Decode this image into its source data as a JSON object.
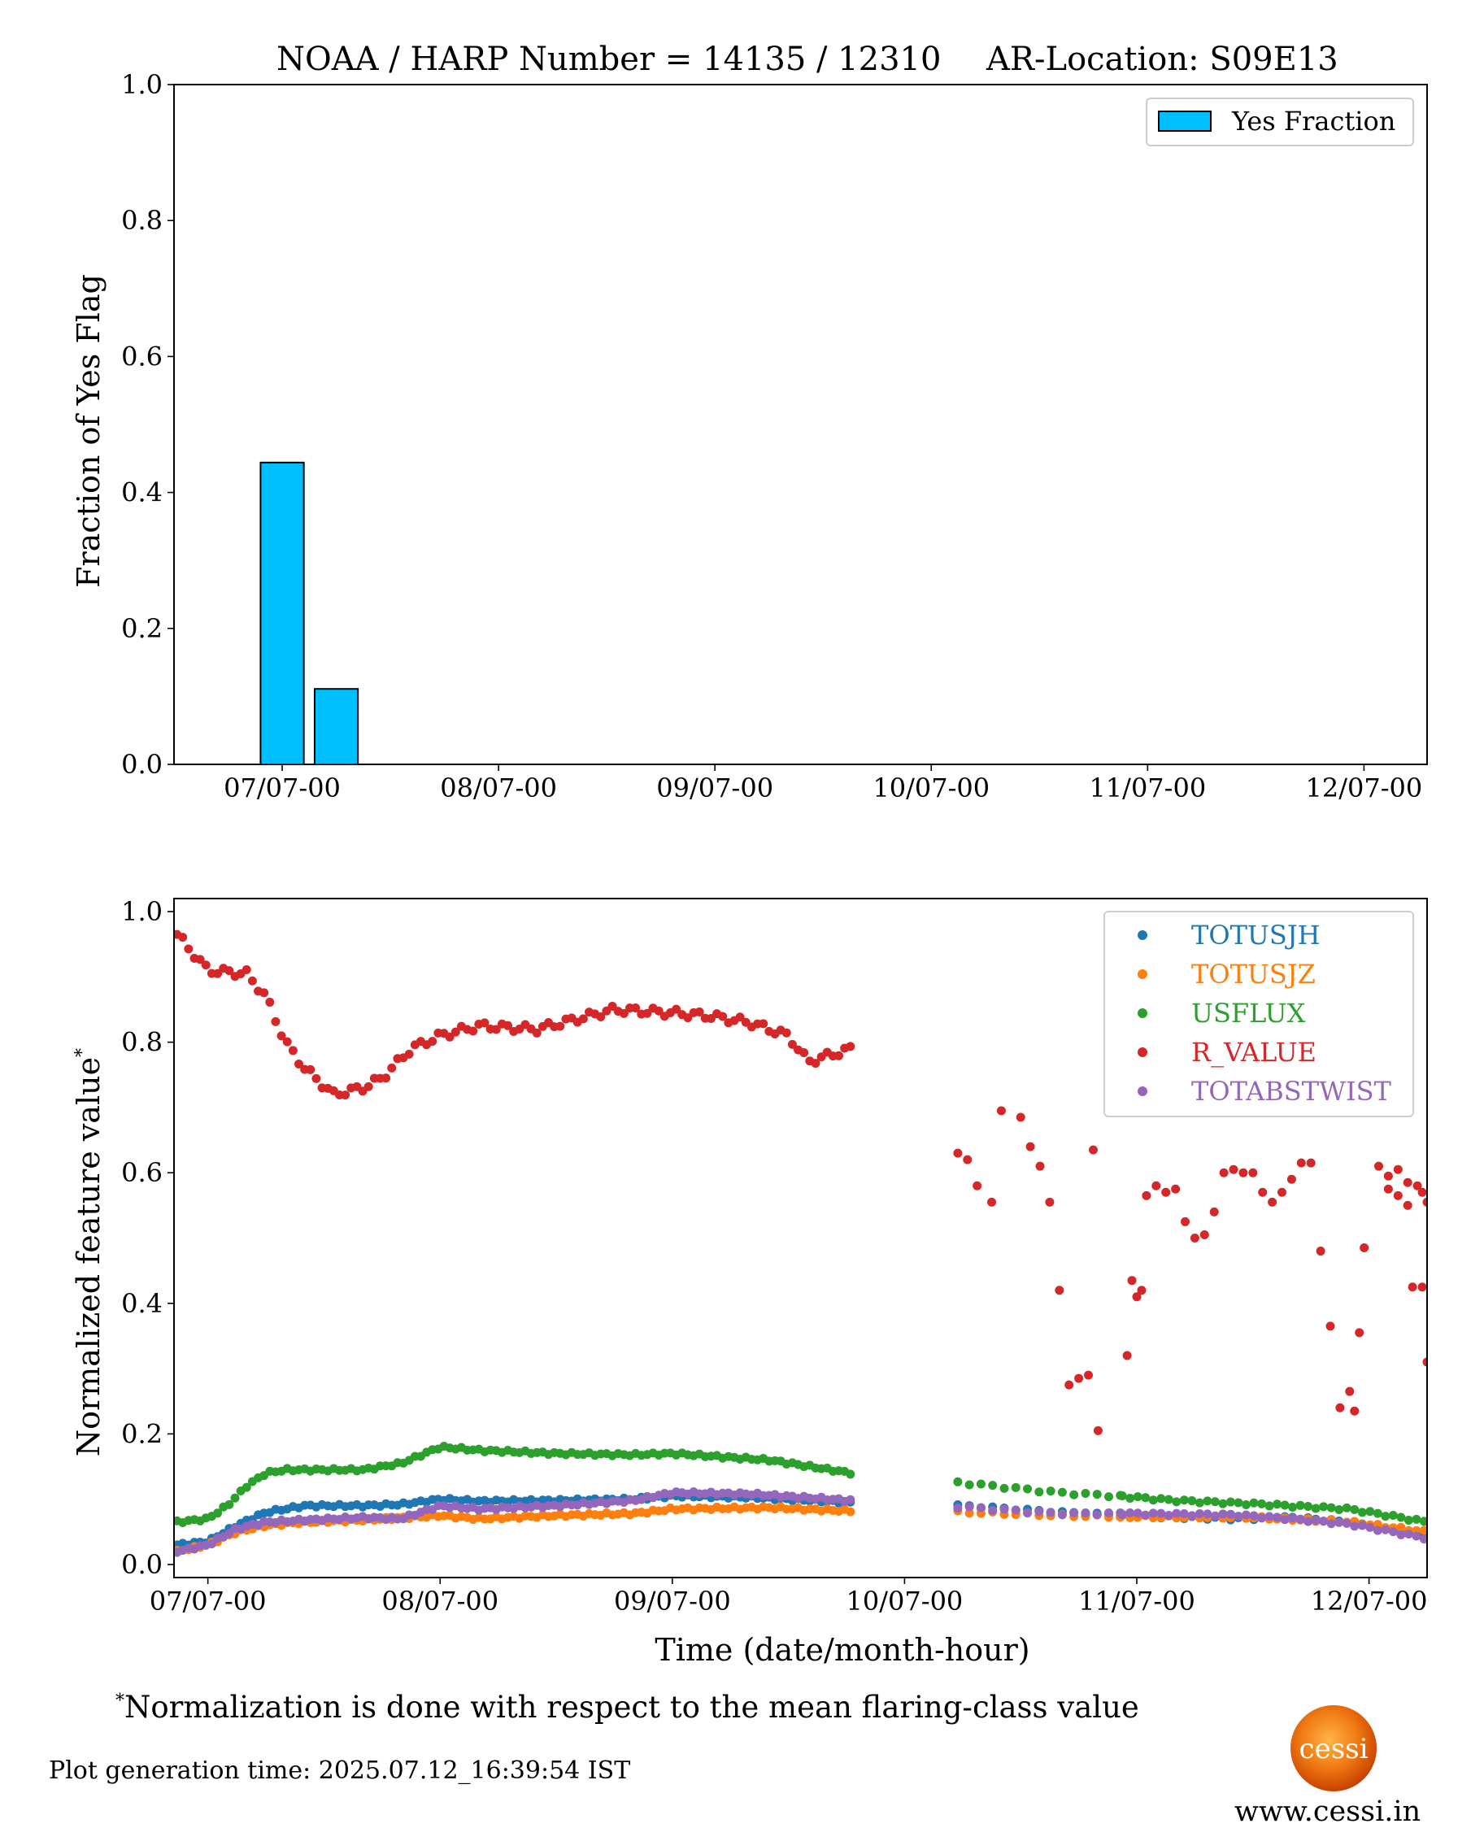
{
  "figure": {
    "title_left": "NOAA / HARP Number = 14135 / 12310",
    "title_right": "AR-Location: S09E13",
    "footnote_mark": "*",
    "footnote": "Normalization is done with respect to the mean flaring-class value",
    "generation_time": "Plot generation time: 2025.07.12_16:39:54 IST",
    "logo_text": "cessi",
    "website": "www.cessi.in"
  },
  "chart_data": [
    {
      "type": "bar",
      "ylabel": "Fraction of Yes Flag",
      "xlabel": "",
      "ylim": [
        0,
        1.0
      ],
      "yticks": [
        0.0,
        0.2,
        0.4,
        0.6,
        0.8,
        1.0
      ],
      "ytick_labels": [
        "0.0",
        "0.2",
        "0.4",
        "0.6",
        "0.8",
        "1.0"
      ],
      "xlim_hours": [
        -12,
        127
      ],
      "xticks_hours": [
        0,
        24,
        48,
        72,
        96,
        120
      ],
      "xtick_labels": [
        "07/07-00",
        "08/07-00",
        "09/07-00",
        "10/07-00",
        "11/07-00",
        "12/07-00"
      ],
      "legend": {
        "position": "top-right",
        "label": "Yes Fraction"
      },
      "bar_color": "#00BFFF",
      "bar_edge": "#000000",
      "bars": [
        {
          "x_hours": 0,
          "width_hours": 4.8,
          "value": 0.444
        },
        {
          "x_hours": 6,
          "width_hours": 4.8,
          "value": 0.111
        }
      ]
    },
    {
      "type": "scatter",
      "xlabel": "Time (date/month-hour)",
      "ylabel": "Normalized feature value",
      "ylabel_mark": "*",
      "ylim": [
        -0.02,
        1.02
      ],
      "yticks": [
        0.0,
        0.2,
        0.4,
        0.6,
        0.8,
        1.0
      ],
      "ytick_labels": [
        "0.0",
        "0.2",
        "0.4",
        "0.6",
        "0.8",
        "1.0"
      ],
      "xlim_hours": [
        -3.5,
        126
      ],
      "xticks_hours": [
        0,
        24,
        48,
        72,
        96,
        120
      ],
      "xtick_labels": [
        "07/07-00",
        "08/07-00",
        "09/07-00",
        "10/07-00",
        "11/07-00",
        "12/07-00"
      ],
      "legend": {
        "position": "top-right"
      },
      "segments": [
        {
          "start": -3.2,
          "end": 66.5,
          "step": 0.6
        },
        {
          "start": 77.5,
          "end": 94.5,
          "step": 1.2
        },
        {
          "start": 94.5,
          "end": 126,
          "step": 0.8
        }
      ],
      "series": [
        {
          "name": "TOTUSJH",
          "color": "#1f77b4",
          "keypoints": [
            [
              -3.2,
              0.03
            ],
            [
              0,
              0.035
            ],
            [
              3,
              0.06
            ],
            [
              6,
              0.08
            ],
            [
              10,
              0.09
            ],
            [
              16,
              0.09
            ],
            [
              20,
              0.092
            ],
            [
              24,
              0.1
            ],
            [
              28,
              0.097
            ],
            [
              36,
              0.098
            ],
            [
              44,
              0.1
            ],
            [
              48,
              0.105
            ],
            [
              56,
              0.103
            ],
            [
              66.5,
              0.095
            ],
            [
              78,
              0.09
            ],
            [
              88,
              0.08
            ],
            [
              95,
              0.075
            ],
            [
              106,
              0.07
            ],
            [
              112,
              0.072
            ],
            [
              118,
              0.065
            ],
            [
              126,
              0.045
            ]
          ]
        },
        {
          "name": "TOTUSJZ",
          "color": "#ff7f0e",
          "keypoints": [
            [
              -3.2,
              0.02
            ],
            [
              0,
              0.03
            ],
            [
              3,
              0.05
            ],
            [
              6,
              0.06
            ],
            [
              10,
              0.065
            ],
            [
              16,
              0.068
            ],
            [
              24,
              0.075
            ],
            [
              28,
              0.07
            ],
            [
              36,
              0.075
            ],
            [
              44,
              0.078
            ],
            [
              48,
              0.085
            ],
            [
              58,
              0.087
            ],
            [
              66.5,
              0.082
            ],
            [
              78,
              0.08
            ],
            [
              88,
              0.075
            ],
            [
              95,
              0.073
            ],
            [
              108,
              0.072
            ],
            [
              118,
              0.065
            ],
            [
              126,
              0.05
            ]
          ]
        },
        {
          "name": "USFLUX",
          "color": "#2ca02c",
          "keypoints": [
            [
              -3.2,
              0.065
            ],
            [
              0,
              0.07
            ],
            [
              2,
              0.09
            ],
            [
              4,
              0.12
            ],
            [
              6,
              0.14
            ],
            [
              8,
              0.145
            ],
            [
              16,
              0.145
            ],
            [
              20,
              0.155
            ],
            [
              24,
              0.18
            ],
            [
              28,
              0.175
            ],
            [
              36,
              0.17
            ],
            [
              44,
              0.168
            ],
            [
              48,
              0.17
            ],
            [
              58,
              0.16
            ],
            [
              66.5,
              0.14
            ],
            [
              78,
              0.125
            ],
            [
              88,
              0.11
            ],
            [
              94,
              0.105
            ],
            [
              100,
              0.098
            ],
            [
              108,
              0.093
            ],
            [
              118,
              0.085
            ],
            [
              126,
              0.065
            ]
          ]
        },
        {
          "name": "R_VALUE",
          "color": "#d62728",
          "keypoints": [
            [
              -3.2,
              0.965
            ],
            [
              0,
              0.91
            ],
            [
              4,
              0.905
            ],
            [
              6,
              0.87
            ],
            [
              8,
              0.8
            ],
            [
              10,
              0.76
            ],
            [
              13,
              0.72
            ],
            [
              16,
              0.73
            ],
            [
              18,
              0.745
            ],
            [
              21,
              0.79
            ],
            [
              24,
              0.81
            ],
            [
              28,
              0.825
            ],
            [
              34,
              0.82
            ],
            [
              38,
              0.835
            ],
            [
              42,
              0.85
            ],
            [
              48,
              0.845
            ],
            [
              52,
              0.84
            ],
            [
              56,
              0.83
            ],
            [
              60,
              0.81
            ],
            [
              62,
              0.77
            ],
            [
              66.5,
              0.79
            ]
          ],
          "gap_points": [
            [
              77.5,
              0.63
            ],
            [
              78.5,
              0.62
            ],
            [
              79.5,
              0.58
            ],
            [
              81,
              0.555
            ],
            [
              82,
              0.695
            ],
            [
              84,
              0.685
            ],
            [
              85,
              0.64
            ],
            [
              86,
              0.61
            ],
            [
              87,
              0.555
            ],
            [
              88,
              0.42
            ],
            [
              89,
              0.275
            ],
            [
              90,
              0.285
            ],
            [
              91,
              0.29
            ],
            [
              91.5,
              0.635
            ],
            [
              92,
              0.205
            ],
            [
              95,
              0.32
            ],
            [
              95.5,
              0.435
            ],
            [
              96,
              0.41
            ],
            [
              96.5,
              0.42
            ],
            [
              97,
              0.565
            ],
            [
              98,
              0.58
            ],
            [
              99,
              0.57
            ],
            [
              100,
              0.575
            ],
            [
              101,
              0.525
            ],
            [
              102,
              0.5
            ],
            [
              103,
              0.505
            ],
            [
              104,
              0.54
            ],
            [
              105,
              0.6
            ],
            [
              106,
              0.605
            ],
            [
              107,
              0.6
            ],
            [
              108,
              0.6
            ],
            [
              109,
              0.57
            ],
            [
              110,
              0.555
            ],
            [
              111,
              0.57
            ],
            [
              112,
              0.59
            ],
            [
              113,
              0.615
            ],
            [
              114,
              0.615
            ],
            [
              115,
              0.48
            ],
            [
              116,
              0.365
            ],
            [
              117,
              0.24
            ],
            [
              118,
              0.265
            ],
            [
              118.5,
              0.235
            ],
            [
              119,
              0.355
            ],
            [
              119.5,
              0.485
            ],
            [
              121,
              0.61
            ],
            [
              122,
              0.595
            ],
            [
              123,
              0.605
            ],
            [
              124,
              0.585
            ],
            [
              125,
              0.58
            ],
            [
              125.5,
              0.57
            ],
            [
              126,
              0.555
            ]
          ],
          "tail_points": [
            [
              122,
              0.575
            ],
            [
              123,
              0.565
            ],
            [
              124,
              0.55
            ],
            [
              124.5,
              0.425
            ],
            [
              125.5,
              0.425
            ],
            [
              126,
              0.31
            ]
          ]
        },
        {
          "name": "TOTABSTWIST",
          "color": "#9467bd",
          "keypoints": [
            [
              -3.2,
              0.02
            ],
            [
              0,
              0.03
            ],
            [
              3,
              0.055
            ],
            [
              6,
              0.065
            ],
            [
              10,
              0.068
            ],
            [
              16,
              0.072
            ],
            [
              20,
              0.07
            ],
            [
              24,
              0.09
            ],
            [
              28,
              0.085
            ],
            [
              36,
              0.09
            ],
            [
              44,
              0.098
            ],
            [
              48,
              0.11
            ],
            [
              56,
              0.108
            ],
            [
              66.5,
              0.098
            ],
            [
              78,
              0.088
            ],
            [
              88,
              0.078
            ],
            [
              95,
              0.078
            ],
            [
              106,
              0.076
            ],
            [
              112,
              0.07
            ],
            [
              118,
              0.062
            ],
            [
              126,
              0.04
            ]
          ]
        }
      ]
    }
  ]
}
